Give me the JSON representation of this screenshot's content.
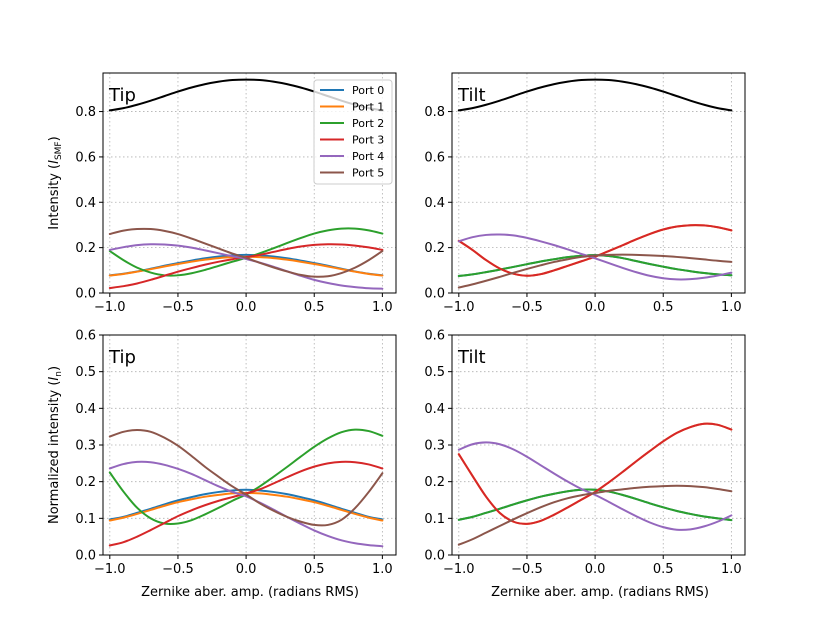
{
  "chart_data": {
    "type": "line",
    "layout": "2x2 grid of line plots",
    "shared_xlabel": "Zernike aber. amp. (radians RMS)",
    "xlim": [
      -1.05,
      1.1
    ],
    "xticks": [
      -1.0,
      -0.5,
      0.0,
      0.5,
      1.0
    ],
    "xtick_labels": [
      "−1.0",
      "−0.5",
      "0.0",
      "0.5",
      "1.0"
    ],
    "grid": true,
    "legend": {
      "location": "top-right of top-left panel",
      "entries": [
        "Port 0",
        "Port 1",
        "Port 2",
        "Port 3",
        "Port 4",
        "Port 5"
      ]
    },
    "colors": {
      "Port 0": "#1f77b4",
      "Port 1": "#ff7f0e",
      "Port 2": "#2ca02c",
      "Port 3": "#d62728",
      "Port 4": "#9467bd",
      "Port 5": "#8c564b",
      "SMF": "#000000"
    },
    "x": [
      -1.0,
      -0.9,
      -0.8,
      -0.7,
      -0.6,
      -0.5,
      -0.4,
      -0.3,
      -0.2,
      -0.1,
      0.0,
      0.1,
      0.2,
      0.3,
      0.4,
      0.5,
      0.6,
      0.7,
      0.8,
      0.9,
      1.0
    ],
    "panels": [
      {
        "id": "top-left",
        "title": "Tip",
        "ylabel": "Intensity (I_SMF)",
        "ylabel_text": "Intensity (",
        "ylabel_sym": "I",
        "ylabel_sub": "SMF",
        "ylabel_close": ")",
        "ylim": [
          0.0,
          0.97
        ],
        "yticks": [
          0.0,
          0.2,
          0.4,
          0.6,
          0.8
        ],
        "ytick_labels": [
          "0.0",
          "0.2",
          "0.4",
          "0.6",
          "0.8"
        ],
        "series": [
          {
            "name": "SMF",
            "values": [
              0.805,
              0.815,
              0.83,
              0.848,
              0.868,
              0.888,
              0.906,
              0.921,
              0.932,
              0.939,
              0.941,
              0.939,
              0.932,
              0.921,
              0.906,
              0.888,
              0.868,
              0.848,
              0.83,
              0.815,
              0.805
            ]
          },
          {
            "name": "Port 0",
            "values": [
              0.078,
              0.085,
              0.095,
              0.107,
              0.12,
              0.132,
              0.143,
              0.153,
              0.161,
              0.166,
              0.168,
              0.166,
              0.161,
              0.153,
              0.143,
              0.132,
              0.12,
              0.107,
              0.095,
              0.085,
              0.078
            ]
          },
          {
            "name": "Port 1",
            "values": [
              0.077,
              0.084,
              0.094,
              0.105,
              0.117,
              0.128,
              0.138,
              0.147,
              0.154,
              0.158,
              0.16,
              0.158,
              0.154,
              0.147,
              0.138,
              0.128,
              0.117,
              0.105,
              0.094,
              0.084,
              0.077
            ]
          },
          {
            "name": "Port 2",
            "values": [
              0.185,
              0.145,
              0.112,
              0.09,
              0.078,
              0.078,
              0.087,
              0.102,
              0.12,
              0.138,
              0.155,
              0.175,
              0.197,
              0.22,
              0.242,
              0.262,
              0.276,
              0.284,
              0.284,
              0.276,
              0.262
            ]
          },
          {
            "name": "Port 3",
            "values": [
              0.022,
              0.03,
              0.042,
              0.058,
              0.076,
              0.094,
              0.11,
              0.125,
              0.138,
              0.149,
              0.158,
              0.168,
              0.181,
              0.194,
              0.205,
              0.212,
              0.215,
              0.214,
              0.209,
              0.201,
              0.19
            ]
          },
          {
            "name": "Port 4",
            "values": [
              0.19,
              0.202,
              0.211,
              0.215,
              0.214,
              0.209,
              0.2,
              0.188,
              0.175,
              0.162,
              0.15,
              0.134,
              0.116,
              0.096,
              0.076,
              0.058,
              0.044,
              0.033,
              0.026,
              0.021,
              0.019
            ]
          },
          {
            "name": "Port 5",
            "values": [
              0.26,
              0.275,
              0.282,
              0.282,
              0.274,
              0.26,
              0.24,
              0.218,
              0.196,
              0.174,
              0.155,
              0.133,
              0.113,
              0.095,
              0.08,
              0.072,
              0.074,
              0.088,
              0.112,
              0.145,
              0.185
            ]
          }
        ]
      },
      {
        "id": "top-right",
        "title": "Tilt",
        "ylabel": "",
        "ylim": [
          0.0,
          0.97
        ],
        "yticks": [
          0.0,
          0.2,
          0.4,
          0.6,
          0.8
        ],
        "ytick_labels": [
          "0.0",
          "0.2",
          "0.4",
          "0.6",
          "0.8"
        ],
        "series": [
          {
            "name": "SMF",
            "values": [
              0.805,
              0.815,
              0.83,
              0.848,
              0.868,
              0.888,
              0.906,
              0.921,
              0.932,
              0.939,
              0.941,
              0.939,
              0.932,
              0.921,
              0.906,
              0.888,
              0.868,
              0.848,
              0.83,
              0.815,
              0.805
            ]
          },
          {
            "name": "Port 0",
            "values": [
              0.075,
              0.082,
              0.092,
              0.103,
              0.115,
              0.127,
              0.139,
              0.149,
              0.158,
              0.164,
              0.167,
              0.163,
              0.154,
              0.141,
              0.128,
              0.116,
              0.105,
              0.096,
              0.088,
              0.082,
              0.078
            ]
          },
          {
            "name": "Port 1",
            "values": [
              0.23,
              0.19,
              0.145,
              0.108,
              0.085,
              0.076,
              0.083,
              0.1,
              0.12,
              0.14,
              0.16,
              0.185,
              0.21,
              0.236,
              0.26,
              0.28,
              0.293,
              0.299,
              0.298,
              0.29,
              0.276
            ]
          },
          {
            "name": "Port 2",
            "values": [
              0.075,
              0.082,
              0.092,
              0.103,
              0.115,
              0.127,
              0.139,
              0.149,
              0.158,
              0.164,
              0.167,
              0.163,
              0.154,
              0.141,
              0.128,
              0.116,
              0.105,
              0.096,
              0.088,
              0.082,
              0.078
            ]
          },
          {
            "name": "Port 3",
            "values": [
              0.23,
              0.19,
              0.145,
              0.108,
              0.085,
              0.076,
              0.083,
              0.1,
              0.12,
              0.14,
              0.16,
              0.185,
              0.21,
              0.236,
              0.26,
              0.28,
              0.293,
              0.299,
              0.298,
              0.29,
              0.276
            ]
          },
          {
            "name": "Port 4",
            "values": [
              0.228,
              0.246,
              0.256,
              0.258,
              0.254,
              0.243,
              0.228,
              0.211,
              0.192,
              0.172,
              0.153,
              0.132,
              0.111,
              0.092,
              0.076,
              0.065,
              0.06,
              0.061,
              0.067,
              0.077,
              0.09
            ]
          },
          {
            "name": "Port 5",
            "values": [
              0.024,
              0.038,
              0.054,
              0.071,
              0.089,
              0.106,
              0.122,
              0.137,
              0.149,
              0.159,
              0.165,
              0.168,
              0.169,
              0.168,
              0.166,
              0.163,
              0.159,
              0.154,
              0.148,
              0.142,
              0.137
            ]
          }
        ]
      },
      {
        "id": "bottom-left",
        "title": "Tip",
        "ylabel": "Normalized intensity (I_n)",
        "ylabel_text": "Normalized intensity (",
        "ylabel_sym": "I",
        "ylabel_sub": "n",
        "ylabel_close": ")",
        "ylim": [
          0.0,
          0.6
        ],
        "yticks": [
          0.0,
          0.1,
          0.2,
          0.3,
          0.4,
          0.5,
          0.6
        ],
        "ytick_labels": [
          "0.0",
          "0.1",
          "0.2",
          "0.3",
          "0.4",
          "0.5",
          "0.6"
        ],
        "series": [
          {
            "name": "Port 0",
            "values": [
              0.097,
              0.104,
              0.115,
              0.126,
              0.138,
              0.149,
              0.158,
              0.166,
              0.172,
              0.176,
              0.178,
              0.176,
              0.172,
              0.166,
              0.158,
              0.149,
              0.138,
              0.126,
              0.115,
              0.104,
              0.097
            ]
          },
          {
            "name": "Port 1",
            "values": [
              0.094,
              0.102,
              0.112,
              0.123,
              0.134,
              0.144,
              0.152,
              0.159,
              0.164,
              0.168,
              0.169,
              0.168,
              0.164,
              0.159,
              0.152,
              0.144,
              0.134,
              0.123,
              0.112,
              0.102,
              0.094
            ]
          },
          {
            "name": "Port 2",
            "values": [
              0.225,
              0.173,
              0.129,
              0.1,
              0.086,
              0.086,
              0.095,
              0.111,
              0.129,
              0.148,
              0.165,
              0.187,
              0.213,
              0.24,
              0.268,
              0.295,
              0.318,
              0.335,
              0.342,
              0.338,
              0.325
            ]
          },
          {
            "name": "Port 3",
            "values": [
              0.026,
              0.035,
              0.05,
              0.068,
              0.087,
              0.106,
              0.122,
              0.136,
              0.148,
              0.158,
              0.168,
              0.179,
              0.195,
              0.212,
              0.228,
              0.241,
              0.25,
              0.254,
              0.253,
              0.247,
              0.236
            ]
          },
          {
            "name": "Port 4",
            "values": [
              0.236,
              0.248,
              0.254,
              0.253,
              0.246,
              0.235,
              0.221,
              0.204,
              0.187,
              0.172,
              0.16,
              0.143,
              0.124,
              0.104,
              0.085,
              0.067,
              0.052,
              0.04,
              0.032,
              0.027,
              0.024
            ]
          },
          {
            "name": "Port 5",
            "values": [
              0.323,
              0.336,
              0.341,
              0.336,
              0.32,
              0.298,
              0.27,
              0.24,
              0.213,
              0.187,
              0.165,
              0.141,
              0.121,
              0.104,
              0.091,
              0.082,
              0.082,
              0.096,
              0.128,
              0.172,
              0.223
            ]
          }
        ]
      },
      {
        "id": "bottom-right",
        "title": "Tilt",
        "ylabel": "",
        "ylim": [
          0.0,
          0.6
        ],
        "yticks": [
          0.0,
          0.1,
          0.2,
          0.3,
          0.4,
          0.5,
          0.6
        ],
        "ytick_labels": [
          "0.0",
          "0.1",
          "0.2",
          "0.3",
          "0.4",
          "0.5",
          "0.6"
        ],
        "series": [
          {
            "name": "Port 0",
            "values": [
              0.096,
              0.104,
              0.115,
              0.126,
              0.138,
              0.149,
              0.159,
              0.167,
              0.174,
              0.178,
              0.178,
              0.173,
              0.164,
              0.153,
              0.141,
              0.13,
              0.12,
              0.112,
              0.105,
              0.1,
              0.095
            ]
          },
          {
            "name": "Port 1",
            "values": [
              0.275,
              0.216,
              0.159,
              0.115,
              0.091,
              0.085,
              0.093,
              0.11,
              0.13,
              0.151,
              0.172,
              0.198,
              0.226,
              0.255,
              0.283,
              0.31,
              0.333,
              0.349,
              0.358,
              0.355,
              0.342
            ]
          },
          {
            "name": "Port 2",
            "values": [
              0.096,
              0.104,
              0.115,
              0.126,
              0.138,
              0.149,
              0.159,
              0.167,
              0.174,
              0.178,
              0.178,
              0.173,
              0.164,
              0.153,
              0.141,
              0.13,
              0.12,
              0.112,
              0.105,
              0.1,
              0.095
            ]
          },
          {
            "name": "Port 3",
            "values": [
              0.275,
              0.216,
              0.159,
              0.115,
              0.091,
              0.085,
              0.093,
              0.11,
              0.13,
              0.151,
              0.172,
              0.198,
              0.226,
              0.255,
              0.283,
              0.31,
              0.333,
              0.349,
              0.358,
              0.355,
              0.342
            ]
          },
          {
            "name": "Port 4",
            "values": [
              0.287,
              0.302,
              0.307,
              0.302,
              0.288,
              0.268,
              0.245,
              0.222,
              0.2,
              0.18,
              0.164,
              0.145,
              0.125,
              0.106,
              0.089,
              0.076,
              0.069,
              0.07,
              0.078,
              0.091,
              0.108
            ]
          },
          {
            "name": "Port 5",
            "values": [
              0.028,
              0.043,
              0.061,
              0.079,
              0.097,
              0.114,
              0.13,
              0.144,
              0.155,
              0.163,
              0.169,
              0.175,
              0.179,
              0.183,
              0.186,
              0.188,
              0.189,
              0.188,
              0.185,
              0.18,
              0.174
            ]
          }
        ]
      }
    ]
  }
}
